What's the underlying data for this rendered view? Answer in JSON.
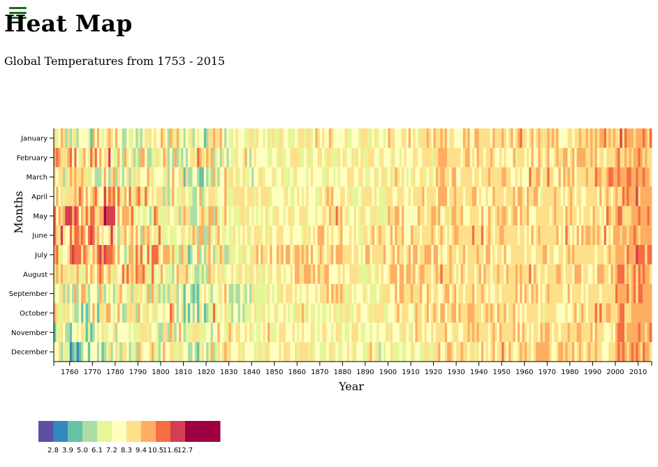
{
  "header": {
    "title": "Heat Map",
    "subtitle": "Global Temperatures from 1753 - 2015",
    "menu_icon": "hamburger-menu-icon"
  },
  "colors": {
    "scale": [
      "#5e4fa2",
      "#3288bd",
      "#66c2a5",
      "#abdda4",
      "#e6f598",
      "#ffffbf",
      "#fee08b",
      "#fdae61",
      "#f46d43",
      "#d53e4f",
      "#9e0142"
    ],
    "menu": "#1a6b1a"
  },
  "chart_data": {
    "type": "heatmap",
    "title": "Heat Map",
    "subtitle": "Global Temperatures from 1753 - 2015",
    "xlabel": "Year",
    "ylabel": "Months",
    "x_range": [
      1753,
      2015
    ],
    "x_ticks": [
      1760,
      1770,
      1780,
      1790,
      1800,
      1810,
      1820,
      1830,
      1840,
      1850,
      1860,
      1870,
      1880,
      1890,
      1900,
      1910,
      1920,
      1930,
      1940,
      1950,
      1960,
      1970,
      1980,
      1990,
      2000,
      2010
    ],
    "months": [
      "January",
      "February",
      "March",
      "April",
      "May",
      "June",
      "July",
      "August",
      "September",
      "October",
      "November",
      "December"
    ],
    "legend_thresholds": [
      "2.8",
      "3.9",
      "5.0",
      "6.1",
      "7.2",
      "8.3",
      "9.4",
      "10.5",
      "11.6",
      "12.7"
    ],
    "values_note": "Estimated binned temperature classes (0-10 index into color scale) per year, sampled by decade and month",
    "decade_class_means": [
      {
        "decade": 1750,
        "classes": [
          5,
          6,
          5,
          6,
          7,
          7,
          6,
          6,
          5,
          5,
          4,
          4
        ]
      },
      {
        "decade": 1760,
        "classes": [
          4,
          6,
          5,
          7,
          7,
          7,
          7,
          6,
          5,
          4,
          4,
          3
        ]
      },
      {
        "decade": 1770,
        "classes": [
          5,
          6,
          5,
          7,
          8,
          7,
          7,
          6,
          5,
          5,
          5,
          4
        ]
      },
      {
        "decade": 1780,
        "classes": [
          5,
          5,
          5,
          6,
          6,
          6,
          6,
          6,
          5,
          5,
          5,
          5
        ]
      },
      {
        "decade": 1790,
        "classes": [
          5,
          5,
          5,
          6,
          5,
          6,
          6,
          6,
          5,
          5,
          5,
          5
        ]
      },
      {
        "decade": 1800,
        "classes": [
          5,
          5,
          5,
          5,
          5,
          6,
          5,
          5,
          5,
          5,
          5,
          5
        ]
      },
      {
        "decade": 1810,
        "classes": [
          4,
          5,
          4,
          5,
          5,
          5,
          5,
          5,
          4,
          4,
          4,
          4
        ]
      },
      {
        "decade": 1820,
        "classes": [
          5,
          5,
          5,
          5,
          5,
          5,
          5,
          5,
          5,
          5,
          5,
          5
        ]
      },
      {
        "decade": 1830,
        "classes": [
          5,
          5,
          5,
          5,
          5,
          5,
          5,
          5,
          4,
          4,
          5,
          5
        ]
      },
      {
        "decade": 1840,
        "classes": [
          5,
          5,
          5,
          5,
          5,
          5,
          6,
          5,
          5,
          5,
          5,
          5
        ]
      },
      {
        "decade": 1850,
        "classes": [
          5,
          5,
          5,
          5,
          5,
          5,
          6,
          5,
          5,
          5,
          5,
          5
        ]
      },
      {
        "decade": 1860,
        "classes": [
          5,
          5,
          5,
          5,
          5,
          5,
          6,
          6,
          5,
          5,
          5,
          5
        ]
      },
      {
        "decade": 1870,
        "classes": [
          6,
          5,
          5,
          6,
          6,
          6,
          6,
          6,
          6,
          5,
          5,
          5
        ]
      },
      {
        "decade": 1880,
        "classes": [
          5,
          5,
          5,
          5,
          5,
          5,
          5,
          5,
          5,
          5,
          5,
          5
        ]
      },
      {
        "decade": 1890,
        "classes": [
          5,
          5,
          5,
          5,
          5,
          6,
          6,
          5,
          5,
          5,
          5,
          5
        ]
      },
      {
        "decade": 1900,
        "classes": [
          6,
          5,
          5,
          6,
          6,
          6,
          6,
          6,
          6,
          6,
          5,
          5
        ]
      },
      {
        "decade": 1910,
        "classes": [
          6,
          5,
          5,
          6,
          6,
          6,
          6,
          6,
          6,
          6,
          6,
          5
        ]
      },
      {
        "decade": 1920,
        "classes": [
          6,
          6,
          6,
          6,
          6,
          6,
          6,
          6,
          6,
          6,
          6,
          6
        ]
      },
      {
        "decade": 1930,
        "classes": [
          6,
          6,
          6,
          6,
          6,
          6,
          6,
          6,
          6,
          6,
          6,
          6
        ]
      },
      {
        "decade": 1940,
        "classes": [
          6,
          6,
          6,
          6,
          6,
          6,
          6,
          6,
          6,
          6,
          6,
          6
        ]
      },
      {
        "decade": 1950,
        "classes": [
          6,
          6,
          6,
          6,
          6,
          6,
          6,
          6,
          6,
          6,
          6,
          6
        ]
      },
      {
        "decade": 1960,
        "classes": [
          6,
          6,
          6,
          6,
          6,
          6,
          6,
          6,
          6,
          6,
          6,
          6
        ]
      },
      {
        "decade": 1970,
        "classes": [
          6,
          6,
          6,
          6,
          6,
          6,
          6,
          6,
          6,
          6,
          6,
          6
        ]
      },
      {
        "decade": 1980,
        "classes": [
          6,
          6,
          6,
          6,
          6,
          6,
          6,
          6,
          6,
          6,
          6,
          6
        ]
      },
      {
        "decade": 1990,
        "classes": [
          7,
          6,
          7,
          6,
          6,
          6,
          6,
          6,
          6,
          7,
          6,
          6
        ]
      },
      {
        "decade": 2000,
        "classes": [
          7,
          7,
          7,
          7,
          7,
          7,
          7,
          7,
          7,
          7,
          7,
          7
        ]
      },
      {
        "decade": 2010,
        "classes": [
          7,
          7,
          7,
          7,
          7,
          7,
          7,
          7,
          7,
          7,
          7,
          7
        ]
      }
    ],
    "grid": false,
    "legend_position": "bottom-left"
  }
}
